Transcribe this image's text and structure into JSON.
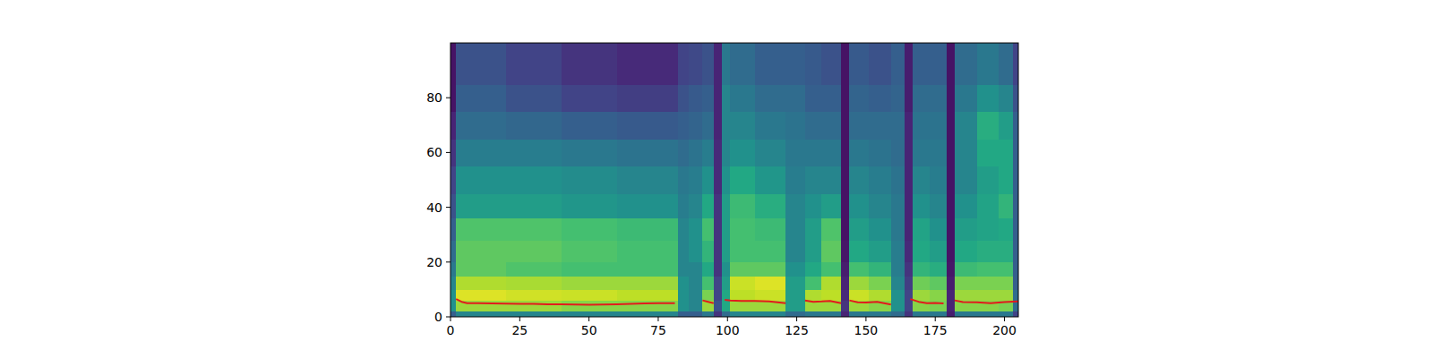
{
  "chart_data": {
    "type": "heatmap",
    "xlim": [
      0,
      205
    ],
    "ylim": [
      0,
      100
    ],
    "xticks": [
      0,
      25,
      50,
      75,
      100,
      125,
      150,
      175,
      200
    ],
    "yticks": [
      0,
      20,
      40,
      60,
      80
    ],
    "clim": [
      0,
      1
    ],
    "x_edges": [
      0,
      2,
      20,
      40,
      60,
      82,
      86,
      91,
      95,
      98,
      101,
      110,
      121,
      128,
      134,
      141,
      144,
      151,
      159,
      164,
      167,
      173,
      179,
      182,
      190,
      198,
      203,
      205
    ],
    "y_edges": [
      0,
      2,
      6,
      10,
      15,
      20,
      28,
      36,
      45,
      55,
      65,
      75,
      85,
      100
    ],
    "cells": [
      [
        0.3,
        0.5,
        0.5,
        0.45,
        0.4,
        0.35,
        0.3,
        0.25,
        0.2,
        0.15,
        0.1,
        0.05,
        0.05
      ],
      [
        0.45,
        0.85,
        0.95,
        0.88,
        0.75,
        0.75,
        0.72,
        0.55,
        0.5,
        0.42,
        0.35,
        0.3,
        0.25
      ],
      [
        0.45,
        0.85,
        0.93,
        0.87,
        0.72,
        0.75,
        0.72,
        0.55,
        0.5,
        0.42,
        0.33,
        0.25,
        0.2
      ],
      [
        0.45,
        0.82,
        0.92,
        0.85,
        0.7,
        0.72,
        0.7,
        0.52,
        0.48,
        0.4,
        0.3,
        0.2,
        0.15
      ],
      [
        0.45,
        0.82,
        0.9,
        0.85,
        0.7,
        0.7,
        0.68,
        0.5,
        0.45,
        0.38,
        0.28,
        0.18,
        0.12
      ],
      [
        0.3,
        0.5,
        0.5,
        0.5,
        0.45,
        0.45,
        0.45,
        0.42,
        0.4,
        0.35,
        0.3,
        0.25,
        0.2
      ],
      [
        0.3,
        0.45,
        0.45,
        0.45,
        0.45,
        0.5,
        0.5,
        0.45,
        0.42,
        0.38,
        0.32,
        0.28,
        0.22
      ],
      [
        0.4,
        0.85,
        0.8,
        0.7,
        0.6,
        0.65,
        0.7,
        0.6,
        0.5,
        0.42,
        0.35,
        0.3,
        0.25
      ],
      [
        0.15,
        0.25,
        0.2,
        0.2,
        0.15,
        0.15,
        0.15,
        0.15,
        0.12,
        0.12,
        0.1,
        0.1,
        0.1
      ],
      [
        0.35,
        0.6,
        0.6,
        0.55,
        0.5,
        0.55,
        0.55,
        0.55,
        0.5,
        0.45,
        0.45,
        0.45,
        0.4
      ],
      [
        0.45,
        0.85,
        0.9,
        0.92,
        0.75,
        0.7,
        0.7,
        0.68,
        0.6,
        0.5,
        0.45,
        0.4,
        0.35
      ],
      [
        0.45,
        0.85,
        0.92,
        0.95,
        0.75,
        0.7,
        0.68,
        0.62,
        0.52,
        0.45,
        0.4,
        0.35,
        0.3
      ],
      [
        0.35,
        0.55,
        0.55,
        0.55,
        0.5,
        0.45,
        0.45,
        0.45,
        0.42,
        0.4,
        0.38,
        0.35,
        0.3
      ],
      [
        0.4,
        0.85,
        0.88,
        0.7,
        0.6,
        0.55,
        0.55,
        0.5,
        0.45,
        0.4,
        0.35,
        0.3,
        0.28
      ],
      [
        0.4,
        0.85,
        0.9,
        0.88,
        0.7,
        0.75,
        0.72,
        0.55,
        0.45,
        0.4,
        0.35,
        0.3,
        0.25
      ],
      [
        0.1,
        0.15,
        0.12,
        0.1,
        0.08,
        0.06,
        0.05,
        0.05,
        0.05,
        0.05,
        0.05,
        0.05,
        0.05
      ],
      [
        0.4,
        0.85,
        0.92,
        0.85,
        0.7,
        0.6,
        0.55,
        0.5,
        0.45,
        0.4,
        0.35,
        0.32,
        0.28
      ],
      [
        0.4,
        0.82,
        0.88,
        0.8,
        0.65,
        0.55,
        0.5,
        0.45,
        0.42,
        0.38,
        0.35,
        0.3,
        0.25
      ],
      [
        0.35,
        0.5,
        0.5,
        0.45,
        0.42,
        0.42,
        0.4,
        0.4,
        0.38,
        0.35,
        0.35,
        0.32,
        0.3
      ],
      [
        0.15,
        0.2,
        0.2,
        0.18,
        0.15,
        0.12,
        0.1,
        0.1,
        0.1,
        0.1,
        0.1,
        0.08,
        0.08
      ],
      [
        0.4,
        0.82,
        0.85,
        0.78,
        0.65,
        0.6,
        0.58,
        0.5,
        0.45,
        0.4,
        0.38,
        0.35,
        0.3
      ],
      [
        0.4,
        0.8,
        0.82,
        0.75,
        0.62,
        0.55,
        0.5,
        0.45,
        0.42,
        0.4,
        0.38,
        0.35,
        0.3
      ],
      [
        0.08,
        0.1,
        0.1,
        0.08,
        0.06,
        0.05,
        0.05,
        0.05,
        0.05,
        0.05,
        0.05,
        0.05,
        0.05
      ],
      [
        0.4,
        0.82,
        0.85,
        0.8,
        0.68,
        0.6,
        0.55,
        0.5,
        0.45,
        0.45,
        0.45,
        0.4,
        0.35
      ],
      [
        0.4,
        0.82,
        0.85,
        0.8,
        0.7,
        0.62,
        0.58,
        0.58,
        0.55,
        0.6,
        0.62,
        0.5,
        0.4
      ],
      [
        0.4,
        0.8,
        0.85,
        0.8,
        0.7,
        0.62,
        0.6,
        0.65,
        0.6,
        0.6,
        0.55,
        0.45,
        0.35
      ],
      [
        0.2,
        0.35,
        0.35,
        0.3,
        0.3,
        0.3,
        0.3,
        0.3,
        0.3,
        0.3,
        0.3,
        0.25,
        0.2
      ]
    ],
    "line": {
      "color": "#e31a1c",
      "x": [
        2,
        4,
        6,
        10,
        15,
        20,
        25,
        30,
        35,
        40,
        45,
        50,
        55,
        60,
        65,
        70,
        75,
        81,
        86,
        91,
        93,
        95,
        97,
        99,
        101,
        105,
        110,
        115,
        121,
        124,
        128,
        131,
        134,
        137,
        141,
        142,
        144,
        147,
        150,
        154,
        159,
        162,
        166,
        169,
        172,
        175,
        178,
        180,
        182,
        185,
        190,
        195,
        200,
        205
      ],
      "y": [
        6.5,
        5.5,
        5.0,
        5.0,
        4.9,
        4.8,
        4.7,
        4.7,
        4.6,
        4.6,
        4.5,
        4.4,
        4.5,
        4.6,
        4.7,
        4.9,
        5.0,
        5.0,
        null,
        6.0,
        5.5,
        5.0,
        null,
        6.2,
        6.0,
        5.8,
        5.8,
        5.6,
        5.0,
        null,
        6.0,
        5.5,
        5.6,
        5.8,
        5.0,
        null,
        6.0,
        5.3,
        5.2,
        5.5,
        4.5,
        null,
        6.5,
        5.5,
        5.0,
        5.1,
        4.9,
        null,
        6.0,
        5.4,
        5.3,
        5.0,
        5.4,
        5.6
      ]
    }
  }
}
